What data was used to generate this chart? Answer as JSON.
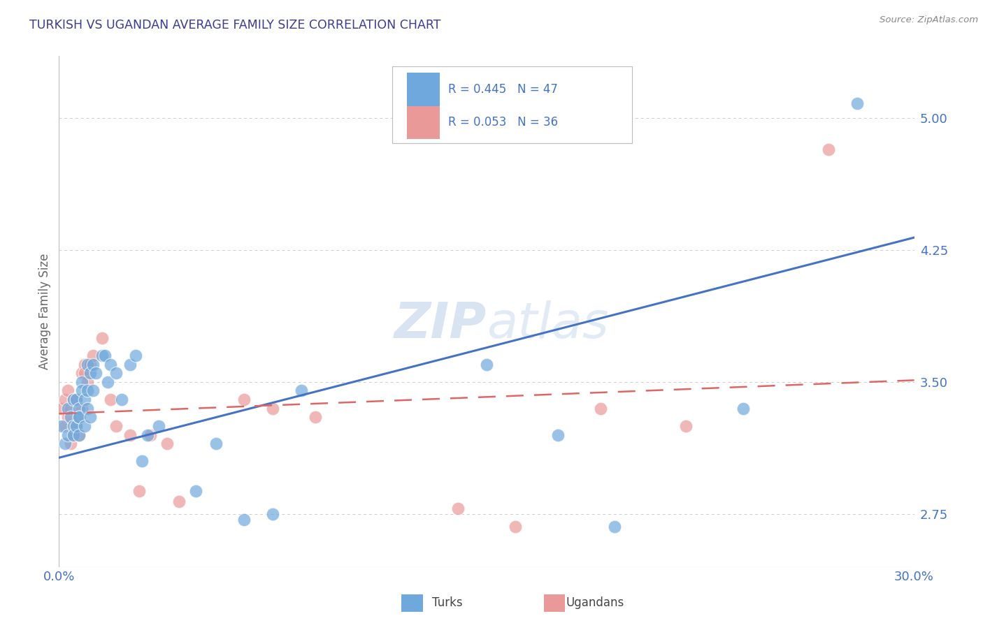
{
  "title": "TURKISH VS UGANDAN AVERAGE FAMILY SIZE CORRELATION CHART",
  "source": "Source: ZipAtlas.com",
  "ylabel": "Average Family Size",
  "xlim": [
    0.0,
    0.3
  ],
  "ylim": [
    2.45,
    5.35
  ],
  "yticks": [
    2.75,
    3.5,
    4.25,
    5.0
  ],
  "xtick_labels": [
    "0.0%",
    "30.0%"
  ],
  "title_color": "#3c3c8f",
  "axis_color": "#4472c4",
  "source_color": "#888888",
  "watermark_zip": "ZIP",
  "watermark_atlas": "atlas",
  "legend_r1": "R = 0.445",
  "legend_n1": "N = 47",
  "legend_r2": "R = 0.053",
  "legend_n2": "N = 36",
  "turks_color": "#6fa8dc",
  "ugandans_color": "#ea9999",
  "turks_line_color": "#4472c4",
  "ugandans_line_color": "#e06666",
  "turks_x": [
    0.001,
    0.002,
    0.003,
    0.003,
    0.004,
    0.005,
    0.005,
    0.005,
    0.006,
    0.006,
    0.007,
    0.007,
    0.007,
    0.007,
    0.008,
    0.008,
    0.009,
    0.009,
    0.01,
    0.01,
    0.01,
    0.011,
    0.011,
    0.012,
    0.012,
    0.013,
    0.015,
    0.016,
    0.017,
    0.018,
    0.02,
    0.022,
    0.025,
    0.027,
    0.029,
    0.031,
    0.035,
    0.048,
    0.055,
    0.065,
    0.075,
    0.085,
    0.15,
    0.175,
    0.195,
    0.24,
    0.28
  ],
  "turks_y": [
    3.25,
    3.15,
    3.35,
    3.2,
    3.3,
    3.25,
    3.2,
    3.4,
    3.4,
    3.25,
    3.35,
    3.3,
    3.3,
    3.2,
    3.5,
    3.45,
    3.4,
    3.25,
    3.35,
    3.45,
    3.6,
    3.55,
    3.3,
    3.45,
    3.6,
    3.55,
    3.65,
    3.65,
    3.5,
    3.6,
    3.55,
    3.4,
    3.6,
    3.65,
    3.05,
    3.2,
    3.25,
    2.88,
    3.15,
    2.72,
    2.75,
    3.45,
    3.6,
    3.2,
    2.68,
    3.35,
    5.08
  ],
  "ugandans_x": [
    0.001,
    0.002,
    0.002,
    0.003,
    0.003,
    0.004,
    0.004,
    0.005,
    0.005,
    0.006,
    0.006,
    0.007,
    0.007,
    0.008,
    0.008,
    0.009,
    0.009,
    0.01,
    0.011,
    0.012,
    0.015,
    0.018,
    0.02,
    0.025,
    0.028,
    0.032,
    0.038,
    0.042,
    0.065,
    0.075,
    0.09,
    0.14,
    0.16,
    0.19,
    0.22,
    0.27
  ],
  "ugandans_y": [
    3.35,
    3.4,
    3.25,
    3.45,
    3.3,
    3.35,
    3.15,
    3.4,
    3.2,
    3.4,
    3.25,
    3.3,
    3.2,
    3.55,
    3.35,
    3.6,
    3.55,
    3.5,
    3.6,
    3.65,
    3.75,
    3.4,
    3.25,
    3.2,
    2.88,
    3.2,
    3.15,
    2.82,
    3.4,
    3.35,
    3.3,
    2.78,
    2.68,
    3.35,
    3.25,
    4.82
  ],
  "turks_line_x0": 0.0,
  "turks_line_y0": 3.07,
  "turks_line_x1": 0.3,
  "turks_line_y1": 4.32,
  "ugandans_line_x0": 0.0,
  "ugandans_line_y0": 3.32,
  "ugandans_line_x1": 0.3,
  "ugandans_line_y1": 3.51,
  "background_color": "#ffffff",
  "grid_color": "#cccccc"
}
